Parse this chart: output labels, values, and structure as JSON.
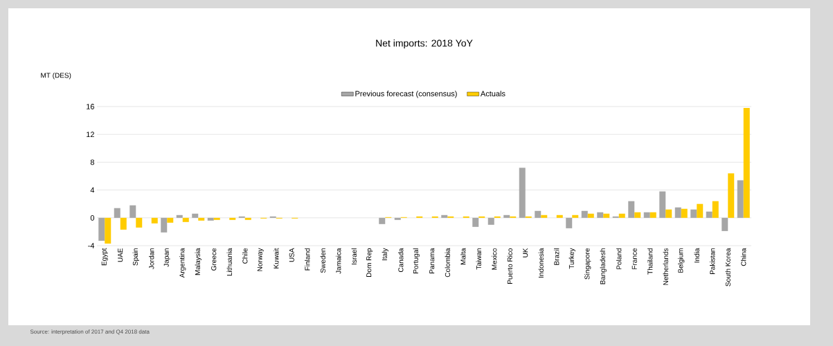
{
  "chart_data": {
    "type": "bar",
    "title": "Net imports: 2018 YoY",
    "ylabel": "MT (DES)",
    "categories": [
      "Egypt",
      "UAE",
      "Spain",
      "Jordan",
      "Japan",
      "Argentina",
      "Malaysia",
      "Greece",
      "Lithuania",
      "Chile",
      "Norway",
      "Kuwait",
      "USA",
      "Finland",
      "Sweden",
      "Jamaica",
      "Israel",
      "Dom Rep",
      "Italy",
      "Canada",
      "Portugal",
      "Panama",
      "Colombia",
      "Malta",
      "Taiwan",
      "Mexico",
      "Puerto Rico",
      "UK",
      "Indonesia",
      "Brazil",
      "Turkey",
      "Singapore",
      "Bangladesh",
      "Poland",
      "France",
      "Thailand",
      "Netherlands",
      "Belgium",
      "India",
      "Pakistan",
      "South Korea",
      "China"
    ],
    "series": [
      {
        "name": "Previous forecast (consensus)",
        "color": "#a6a6a6",
        "values": [
          -3.3,
          1.4,
          1.8,
          null,
          -2.1,
          0.4,
          0.6,
          -0.4,
          0,
          0.2,
          null,
          0.2,
          null,
          0,
          null,
          0,
          0,
          0,
          -0.9,
          -0.3,
          0,
          0,
          0.4,
          0,
          -1.3,
          -1.0,
          0.4,
          7.2,
          1.0,
          0,
          -1.5,
          1.0,
          0.8,
          0.2,
          2.4,
          0.8,
          3.8,
          1.5,
          1.2,
          0.9,
          -1.9,
          5.4
        ]
      },
      {
        "name": "Actuals",
        "color": "#ffcc00",
        "values": [
          -3.7,
          -1.7,
          -1.4,
          -0.8,
          -0.7,
          -0.6,
          -0.4,
          -0.3,
          -0.3,
          -0.3,
          -0.1,
          -0.1,
          -0.1,
          0,
          0,
          0,
          0,
          0,
          0.1,
          0.1,
          0.2,
          0.2,
          0.2,
          0.2,
          0.2,
          0.2,
          0.2,
          0.2,
          0.4,
          0.4,
          0.4,
          0.6,
          0.6,
          0.6,
          0.8,
          0.8,
          1.2,
          1.3,
          2.0,
          2.4,
          6.4,
          15.8
        ]
      }
    ],
    "ylim": [
      -4,
      16
    ],
    "yticks": [
      -4,
      0,
      4,
      8,
      12,
      16
    ],
    "grid": "y",
    "legend": "top",
    "annotations": [
      "Source: interpretation of 2017 and Q4 2018 data"
    ]
  }
}
